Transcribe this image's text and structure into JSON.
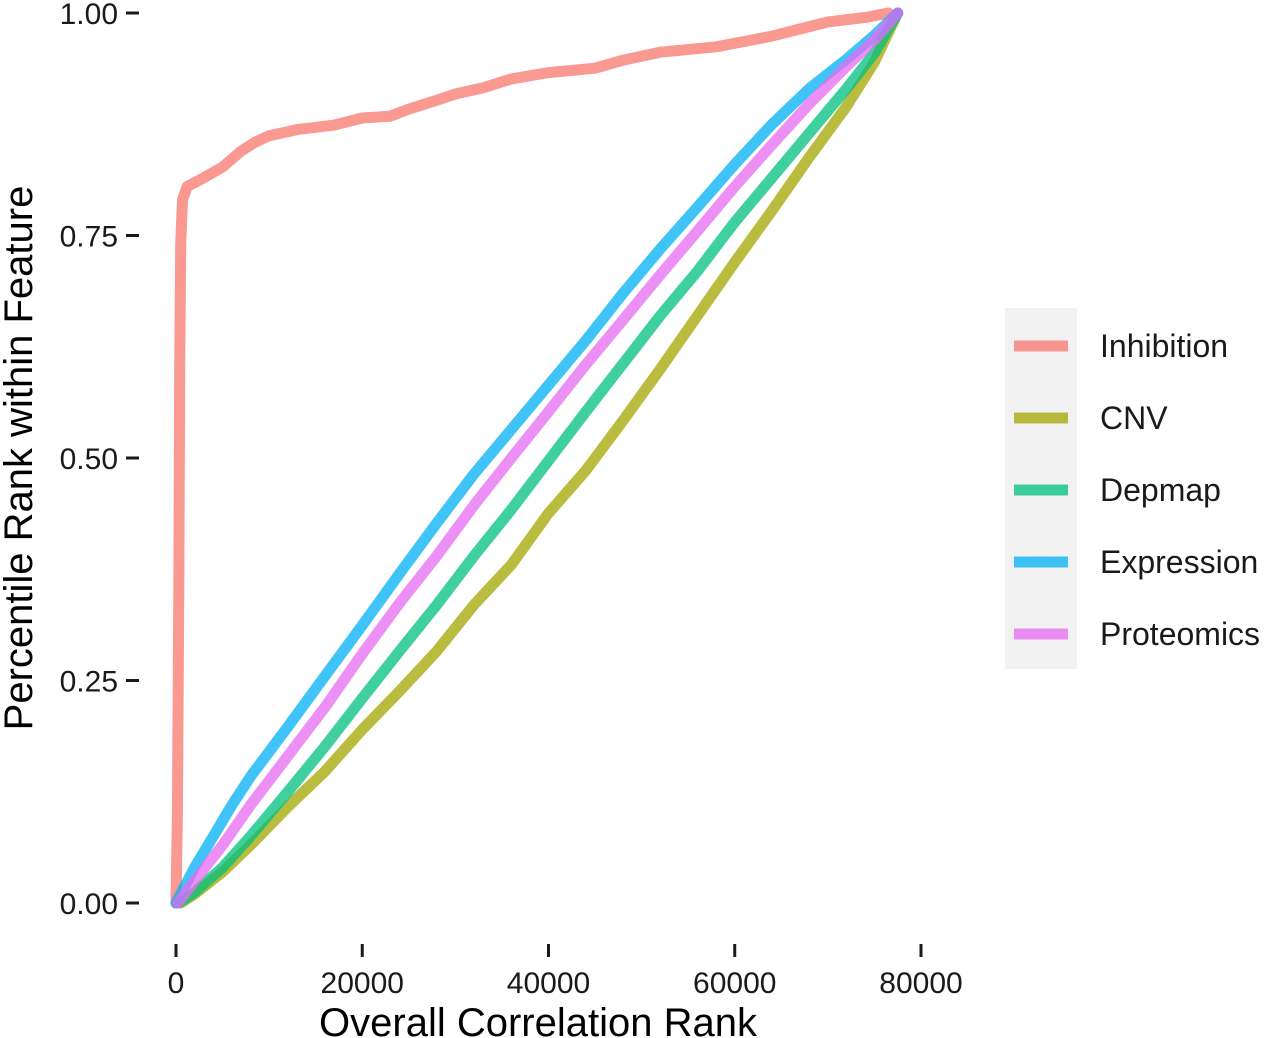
{
  "chart_data": {
    "type": "line",
    "title": "",
    "xlabel": "Overall Correlation Rank",
    "ylabel": "Percentile Rank within Feature",
    "xlim": [
      -2000,
      91000
    ],
    "ylim": [
      -0.01,
      1.01
    ],
    "x_ticks": [
      0,
      20000,
      40000,
      60000,
      80000
    ],
    "x_tick_labels": [
      "0",
      "20000",
      "40000",
      "60000",
      "80000"
    ],
    "y_ticks": [
      0,
      0.25,
      0.5,
      0.75,
      1.0
    ],
    "y_tick_labels": [
      "0.00",
      "0.25",
      "0.50",
      "0.75",
      "1.00"
    ],
    "grid": false,
    "legend_position": "right",
    "series": [
      {
        "name": "Inhibition",
        "color": "#F8766D",
        "points": [
          [
            0,
            0
          ],
          [
            150,
            0.1
          ],
          [
            300,
            0.35
          ],
          [
            400,
            0.6
          ],
          [
            500,
            0.74
          ],
          [
            700,
            0.79
          ],
          [
            1200,
            0.805
          ],
          [
            3000,
            0.815
          ],
          [
            5000,
            0.827
          ],
          [
            7000,
            0.845
          ],
          [
            8500,
            0.855
          ],
          [
            10000,
            0.862
          ],
          [
            13000,
            0.869
          ],
          [
            17000,
            0.874
          ],
          [
            20000,
            0.882
          ],
          [
            23000,
            0.884
          ],
          [
            25000,
            0.892
          ],
          [
            28000,
            0.902
          ],
          [
            30000,
            0.909
          ],
          [
            33000,
            0.916
          ],
          [
            36000,
            0.926
          ],
          [
            40000,
            0.933
          ],
          [
            45000,
            0.938
          ],
          [
            48000,
            0.947
          ],
          [
            52000,
            0.956
          ],
          [
            58000,
            0.962
          ],
          [
            61000,
            0.968
          ],
          [
            64000,
            0.974
          ],
          [
            67000,
            0.982
          ],
          [
            70000,
            0.99
          ],
          [
            74000,
            0.995
          ],
          [
            75500,
            0.998
          ],
          [
            76500,
            1.0
          ]
        ]
      },
      {
        "name": "CNV",
        "color": "#A3A500",
        "points": [
          [
            500,
            0
          ],
          [
            2000,
            0.01
          ],
          [
            5000,
            0.035
          ],
          [
            8000,
            0.065
          ],
          [
            12000,
            0.108
          ],
          [
            16000,
            0.148
          ],
          [
            20000,
            0.195
          ],
          [
            24000,
            0.238
          ],
          [
            28000,
            0.283
          ],
          [
            32000,
            0.335
          ],
          [
            36000,
            0.38
          ],
          [
            40000,
            0.438
          ],
          [
            44000,
            0.486
          ],
          [
            48000,
            0.542
          ],
          [
            52000,
            0.6
          ],
          [
            56000,
            0.66
          ],
          [
            60000,
            0.72
          ],
          [
            64000,
            0.778
          ],
          [
            68000,
            0.838
          ],
          [
            72000,
            0.895
          ],
          [
            75000,
            0.945
          ],
          [
            77500,
            1.0
          ]
        ]
      },
      {
        "name": "Depmap",
        "color": "#00BF7D",
        "points": [
          [
            300,
            0
          ],
          [
            2000,
            0.012
          ],
          [
            5000,
            0.04
          ],
          [
            8000,
            0.075
          ],
          [
            12000,
            0.125
          ],
          [
            16000,
            0.176
          ],
          [
            20000,
            0.23
          ],
          [
            24000,
            0.283
          ],
          [
            28000,
            0.335
          ],
          [
            32000,
            0.39
          ],
          [
            36000,
            0.442
          ],
          [
            40000,
            0.497
          ],
          [
            44000,
            0.552
          ],
          [
            48000,
            0.606
          ],
          [
            52000,
            0.66
          ],
          [
            56000,
            0.71
          ],
          [
            60000,
            0.765
          ],
          [
            64000,
            0.815
          ],
          [
            68000,
            0.865
          ],
          [
            72000,
            0.915
          ],
          [
            75000,
            0.955
          ],
          [
            77500,
            1.0
          ]
        ]
      },
      {
        "name": "Expression",
        "color": "#00B0F6",
        "points": [
          [
            0,
            0
          ],
          [
            2000,
            0.04
          ],
          [
            4000,
            0.075
          ],
          [
            6000,
            0.11
          ],
          [
            8000,
            0.142
          ],
          [
            12000,
            0.198
          ],
          [
            16000,
            0.255
          ],
          [
            20000,
            0.312
          ],
          [
            24000,
            0.37
          ],
          [
            28000,
            0.427
          ],
          [
            32000,
            0.482
          ],
          [
            36000,
            0.532
          ],
          [
            40000,
            0.582
          ],
          [
            44000,
            0.632
          ],
          [
            48000,
            0.685
          ],
          [
            52000,
            0.735
          ],
          [
            56000,
            0.782
          ],
          [
            60000,
            0.83
          ],
          [
            64000,
            0.875
          ],
          [
            68000,
            0.915
          ],
          [
            72000,
            0.948
          ],
          [
            75000,
            0.975
          ],
          [
            77500,
            1.0
          ]
        ]
      },
      {
        "name": "Proteomics",
        "color": "#E76BF3",
        "points": [
          [
            200,
            0
          ],
          [
            2000,
            0.025
          ],
          [
            5000,
            0.065
          ],
          [
            8000,
            0.11
          ],
          [
            12000,
            0.165
          ],
          [
            16000,
            0.22
          ],
          [
            20000,
            0.28
          ],
          [
            24000,
            0.337
          ],
          [
            28000,
            0.39
          ],
          [
            32000,
            0.447
          ],
          [
            36000,
            0.5
          ],
          [
            40000,
            0.552
          ],
          [
            44000,
            0.605
          ],
          [
            48000,
            0.655
          ],
          [
            52000,
            0.706
          ],
          [
            56000,
            0.755
          ],
          [
            60000,
            0.805
          ],
          [
            64000,
            0.852
          ],
          [
            68000,
            0.898
          ],
          [
            72000,
            0.94
          ],
          [
            75000,
            0.97
          ],
          [
            77500,
            1.0
          ]
        ]
      }
    ]
  }
}
